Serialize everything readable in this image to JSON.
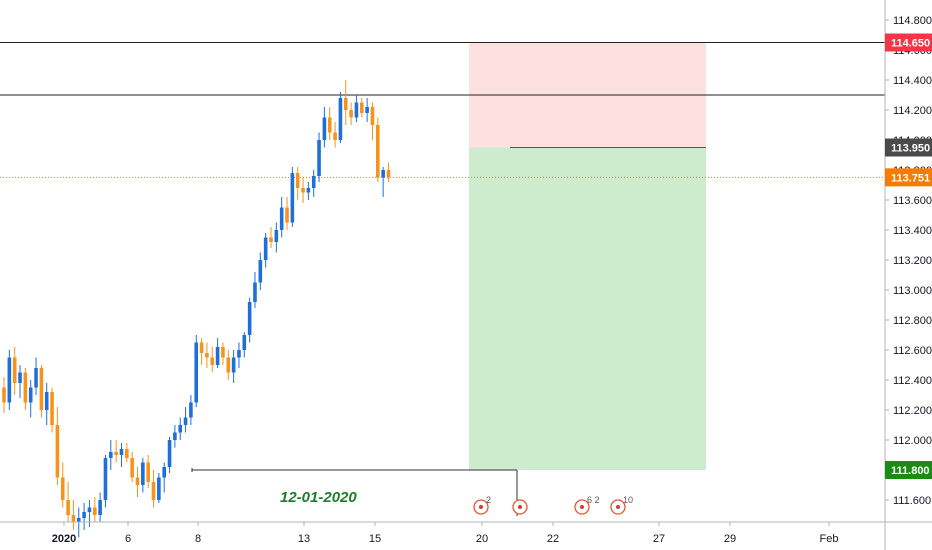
{
  "chart_data": {
    "type": "candlestick",
    "y_ticks": [
      "114.800",
      "114.600",
      "114.400",
      "114.200",
      "114.000",
      "113.800",
      "113.600",
      "113.400",
      "113.200",
      "113.000",
      "112.800",
      "112.600",
      "112.400",
      "112.200",
      "112.000",
      "111.800",
      "111.600"
    ],
    "ylim": [
      111.45,
      114.95
    ],
    "x_ticks": [
      "2020",
      "6",
      "8",
      "13",
      "15",
      "20",
      "22",
      "27",
      "29",
      "Feb"
    ],
    "horizontal_lines": [
      114.65,
      114.3
    ],
    "price_line": 113.751,
    "price_labels": [
      {
        "text": "114.650",
        "value": 114.65,
        "color": "#f23645"
      },
      {
        "text": "113.950",
        "value": 113.95,
        "color": "#4a4a4a"
      },
      {
        "text": "113.751",
        "value": 113.751,
        "color": "#f57c00"
      },
      {
        "text": "111.800",
        "value": 111.8,
        "color": "#1b8b16"
      }
    ],
    "position": {
      "target": 114.65,
      "entry": 113.95,
      "stop": 111.8
    },
    "level_ray": {
      "value": 111.8
    },
    "annotation": "12-01-2020",
    "events": [
      {
        "label": "2"
      },
      {
        "label": ""
      },
      {
        "label": "6 2"
      },
      {
        "label": "10"
      }
    ],
    "colors": {
      "up": "#1e6fd9",
      "down": "#f7931a",
      "target_zone": "#fde0e0",
      "stop_zone": "#cdebcd"
    },
    "candles": [
      [
        112.35,
        112.42,
        112.18,
        112.25
      ],
      [
        112.25,
        112.6,
        112.2,
        112.55
      ],
      [
        112.55,
        112.62,
        112.3,
        112.38
      ],
      [
        112.38,
        112.5,
        112.28,
        112.45
      ],
      [
        112.45,
        112.48,
        112.2,
        112.25
      ],
      [
        112.25,
        112.4,
        112.15,
        112.35
      ],
      [
        112.35,
        112.55,
        112.3,
        112.48
      ],
      [
        112.48,
        112.5,
        112.15,
        112.2
      ],
      [
        112.2,
        112.38,
        112.1,
        112.32
      ],
      [
        112.32,
        112.35,
        112.05,
        112.1
      ],
      [
        112.1,
        112.22,
        111.7,
        111.75
      ],
      [
        111.75,
        111.85,
        111.55,
        111.6
      ],
      [
        111.6,
        111.72,
        111.45,
        111.5
      ],
      [
        111.5,
        111.6,
        111.4,
        111.45
      ],
      [
        111.45,
        111.55,
        111.35,
        111.48
      ],
      [
        111.48,
        111.58,
        111.4,
        111.52
      ],
      [
        111.52,
        111.6,
        111.42,
        111.55
      ],
      [
        111.55,
        111.62,
        111.45,
        111.5
      ],
      [
        111.5,
        111.65,
        111.45,
        111.6
      ],
      [
        111.6,
        111.9,
        111.55,
        111.88
      ],
      [
        111.88,
        112.0,
        111.8,
        111.92
      ],
      [
        111.92,
        112.0,
        111.85,
        111.9
      ],
      [
        111.9,
        111.98,
        111.82,
        111.94
      ],
      [
        111.94,
        111.98,
        111.85,
        111.88
      ],
      [
        111.88,
        111.92,
        111.72,
        111.75
      ],
      [
        111.75,
        111.82,
        111.62,
        111.7
      ],
      [
        111.7,
        111.88,
        111.65,
        111.85
      ],
      [
        111.85,
        111.9,
        111.68,
        111.72
      ],
      [
        111.72,
        111.8,
        111.55,
        111.6
      ],
      [
        111.6,
        111.78,
        111.58,
        111.75
      ],
      [
        111.75,
        111.85,
        111.65,
        111.82
      ],
      [
        111.82,
        112.02,
        111.78,
        112.0
      ],
      [
        112.0,
        112.1,
        111.95,
        112.05
      ],
      [
        112.05,
        112.15,
        112.0,
        112.1
      ],
      [
        112.1,
        112.22,
        112.05,
        112.15
      ],
      [
        112.15,
        112.3,
        112.1,
        112.25
      ],
      [
        112.25,
        112.7,
        112.22,
        112.65
      ],
      [
        112.65,
        112.68,
        112.5,
        112.58
      ],
      [
        112.58,
        112.65,
        112.48,
        112.55
      ],
      [
        112.55,
        112.62,
        112.45,
        112.5
      ],
      [
        112.5,
        112.68,
        112.48,
        112.62
      ],
      [
        112.62,
        112.65,
        112.5,
        112.55
      ],
      [
        112.55,
        112.6,
        112.4,
        112.45
      ],
      [
        112.45,
        112.6,
        112.38,
        112.55
      ],
      [
        112.55,
        112.65,
        112.48,
        112.6
      ],
      [
        112.6,
        112.72,
        112.55,
        112.7
      ],
      [
        112.7,
        112.95,
        112.65,
        112.92
      ],
      [
        112.92,
        113.12,
        112.88,
        113.05
      ],
      [
        113.05,
        113.25,
        113.0,
        113.2
      ],
      [
        113.2,
        113.38,
        113.15,
        113.35
      ],
      [
        113.35,
        113.42,
        113.28,
        113.32
      ],
      [
        113.32,
        113.45,
        113.25,
        113.4
      ],
      [
        113.4,
        113.62,
        113.35,
        113.55
      ],
      [
        113.55,
        113.62,
        113.4,
        113.45
      ],
      [
        113.45,
        113.82,
        113.42,
        113.78
      ],
      [
        113.78,
        113.82,
        113.6,
        113.68
      ],
      [
        113.68,
        113.75,
        113.58,
        113.65
      ],
      [
        113.65,
        113.72,
        113.6,
        113.68
      ],
      [
        113.68,
        113.8,
        113.62,
        113.76
      ],
      [
        113.76,
        114.05,
        113.72,
        114.0
      ],
      [
        114.0,
        114.22,
        113.95,
        114.15
      ],
      [
        114.15,
        114.22,
        114.0,
        114.05
      ],
      [
        114.05,
        114.12,
        113.95,
        114.0
      ],
      [
        114.0,
        114.32,
        113.98,
        114.28
      ],
      [
        114.28,
        114.4,
        114.1,
        114.2
      ],
      [
        114.2,
        114.25,
        114.1,
        114.15
      ],
      [
        114.15,
        114.3,
        114.12,
        114.25
      ],
      [
        114.25,
        114.28,
        114.15,
        114.18
      ],
      [
        114.18,
        114.28,
        114.12,
        114.22
      ],
      [
        114.22,
        114.25,
        114.0,
        114.1
      ],
      [
        114.1,
        114.15,
        113.72,
        113.75
      ],
      [
        113.75,
        113.82,
        113.62,
        113.8
      ],
      [
        113.8,
        113.85,
        113.72,
        113.751
      ]
    ]
  }
}
